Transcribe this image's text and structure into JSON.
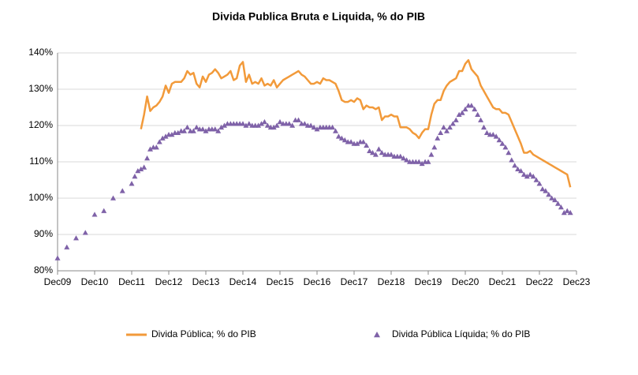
{
  "chart_data": {
    "type": "line",
    "title": "Divida Publica Bruta e Liquida, % do PIB",
    "x": [
      0,
      1,
      2,
      3,
      4,
      5,
      6,
      7,
      8,
      9,
      10,
      11,
      12,
      13,
      14,
      15,
      16,
      17,
      18,
      19,
      20,
      21,
      22,
      23,
      24,
      25,
      26,
      27,
      28,
      29,
      30,
      31,
      32,
      33,
      34,
      35,
      36,
      37,
      38,
      39,
      40,
      41,
      42,
      43,
      44,
      45,
      46,
      47,
      48,
      49,
      50,
      51,
      52,
      53,
      54,
      55,
      56,
      57,
      58,
      59,
      60,
      61,
      62,
      63,
      64,
      65,
      66,
      67,
      68,
      69,
      70,
      71,
      72,
      73,
      74,
      75,
      76,
      77,
      78,
      79,
      80,
      81,
      82,
      83,
      84,
      85,
      86,
      87,
      88,
      89,
      90,
      91,
      92,
      93,
      94,
      95,
      96,
      97,
      98,
      99,
      100,
      101,
      102,
      103,
      104,
      105,
      106,
      107,
      108,
      109,
      110,
      111,
      112,
      113,
      114,
      115,
      116,
      117,
      118,
      119,
      120,
      121,
      122,
      123,
      124,
      125,
      126,
      127,
      128,
      129,
      130,
      131,
      132,
      133,
      134,
      135,
      136,
      137,
      138,
      139,
      140,
      141,
      142,
      143,
      144,
      145,
      146,
      147,
      148,
      149,
      150,
      151,
      152,
      153,
      154,
      155,
      156,
      157,
      158,
      159,
      160,
      161,
      162,
      163,
      164,
      165,
      166
    ],
    "series": [
      {
        "name": "Divida Pública; % do PIB",
        "type": "line",
        "color": "#f29a3a",
        "values": [
          null,
          null,
          null,
          null,
          null,
          null,
          null,
          null,
          null,
          null,
          null,
          null,
          null,
          null,
          null,
          null,
          null,
          null,
          null,
          null,
          null,
          null,
          null,
          null,
          null,
          null,
          null,
          119,
          123,
          128,
          124,
          125,
          125.5,
          126.5,
          128,
          131,
          129,
          131.5,
          132,
          132,
          132,
          133,
          135,
          134,
          134.5,
          131.5,
          130.5,
          133.5,
          132,
          134,
          134.5,
          135.5,
          134.5,
          133,
          133.5,
          134,
          135,
          132.5,
          133,
          136.5,
          137.5,
          132,
          134,
          131.5,
          132,
          131.5,
          133,
          131,
          131.5,
          131,
          132.5,
          130.5,
          131.5,
          132.5,
          133,
          133.5,
          134,
          134.5,
          135,
          134,
          133.5,
          132.5,
          131.5,
          131.5,
          132,
          131.5,
          133,
          132.5,
          132.5,
          132,
          131.5,
          129.5,
          127,
          126.5,
          126.5,
          127,
          126.5,
          127.5,
          127,
          124.5,
          125.5,
          125,
          125,
          124.5,
          125,
          121.5,
          122.5,
          122.5,
          123,
          122.5,
          122.5,
          119.5,
          119.5,
          119.5,
          119,
          118,
          117.5,
          116.5,
          118,
          119,
          119,
          123,
          126,
          127,
          127,
          129.5,
          131,
          132,
          132.5,
          133,
          135,
          135,
          137,
          138,
          135.5,
          134.5,
          133.5,
          131,
          129.5,
          128,
          126.5,
          125,
          124.5,
          124.5,
          123.5,
          123.5,
          123,
          121,
          119,
          117,
          115,
          112.5,
          112.5,
          113,
          112,
          111.5,
          111,
          110.5,
          110,
          109.5,
          109,
          108.5,
          108,
          107.5,
          107,
          106.5,
          103
        ]
      },
      {
        "name": "Divida Pública Líquida; % do PIB",
        "type": "scatter",
        "marker": "triangle",
        "color": "#7f62a8",
        "values": [
          83.5,
          null,
          null,
          86.5,
          null,
          null,
          89,
          null,
          null,
          90.5,
          null,
          null,
          95.5,
          null,
          null,
          96.5,
          null,
          null,
          100,
          null,
          null,
          102,
          null,
          null,
          104,
          106,
          107.5,
          108,
          108.5,
          111,
          113.5,
          114,
          114,
          115.5,
          116.5,
          117,
          117.5,
          117.5,
          118,
          118,
          118.5,
          118.5,
          119.5,
          118.5,
          118.5,
          119.5,
          119,
          119,
          118.5,
          119,
          119,
          119,
          118.5,
          119.5,
          120,
          120.5,
          120.5,
          120.5,
          120.5,
          120.5,
          120.5,
          120,
          120.5,
          120,
          120,
          120,
          120.5,
          121,
          120,
          119.5,
          119.5,
          120,
          121,
          120.5,
          120.5,
          120.5,
          120,
          121.5,
          121.5,
          120.5,
          120.5,
          120,
          120,
          119.5,
          119,
          119.5,
          119.5,
          119.5,
          119.5,
          119.5,
          118.5,
          117,
          116.5,
          116,
          115.5,
          115.5,
          115,
          115,
          115.5,
          115.5,
          114.5,
          113,
          112.5,
          112,
          113.5,
          112.5,
          112,
          112,
          112,
          111.5,
          111.5,
          111.5,
          111,
          110.5,
          110,
          110,
          110,
          110,
          109.5,
          110,
          110,
          112,
          114,
          116.5,
          118,
          119.5,
          118.5,
          119.5,
          120.5,
          121.5,
          123,
          123.5,
          124.5,
          125.5,
          125.5,
          124.5,
          123,
          121.5,
          119.5,
          118,
          117.5,
          117.5,
          117,
          116,
          115,
          114,
          112.5,
          110.5,
          109,
          108,
          107.5,
          106.5,
          106,
          106.5,
          106,
          105,
          104,
          102.5,
          102,
          101,
          100,
          99.5,
          98.5,
          97.5,
          96,
          96.5,
          96
        ]
      }
    ],
    "xlim": [
      0,
      168
    ],
    "xticks": [
      {
        "value": 0,
        "label": "Dec09"
      },
      {
        "value": 12,
        "label": "Dec10"
      },
      {
        "value": 24,
        "label": "Dec11"
      },
      {
        "value": 36,
        "label": "Dec12"
      },
      {
        "value": 48,
        "label": "Dec13"
      },
      {
        "value": 60,
        "label": "Dec14"
      },
      {
        "value": 72,
        "label": "Dec15"
      },
      {
        "value": 84,
        "label": "Dec16"
      },
      {
        "value": 96,
        "label": "Dec17"
      },
      {
        "value": 108,
        "label": "Dez18"
      },
      {
        "value": 120,
        "label": "Dec19"
      },
      {
        "value": 132,
        "label": "Dec20"
      },
      {
        "value": 144,
        "label": "Dec21"
      },
      {
        "value": 156,
        "label": "Dec22"
      },
      {
        "value": 168,
        "label": "Dec23"
      }
    ],
    "ylim": [
      80,
      140
    ],
    "yticks": [
      {
        "value": 80,
        "label": "80%"
      },
      {
        "value": 90,
        "label": "90%"
      },
      {
        "value": 100,
        "label": "100%"
      },
      {
        "value": 110,
        "label": "110%"
      },
      {
        "value": 120,
        "label": "120%"
      },
      {
        "value": 130,
        "label": "130%"
      },
      {
        "value": 140,
        "label": "140%"
      }
    ],
    "grid": true,
    "legend": "bottom"
  }
}
